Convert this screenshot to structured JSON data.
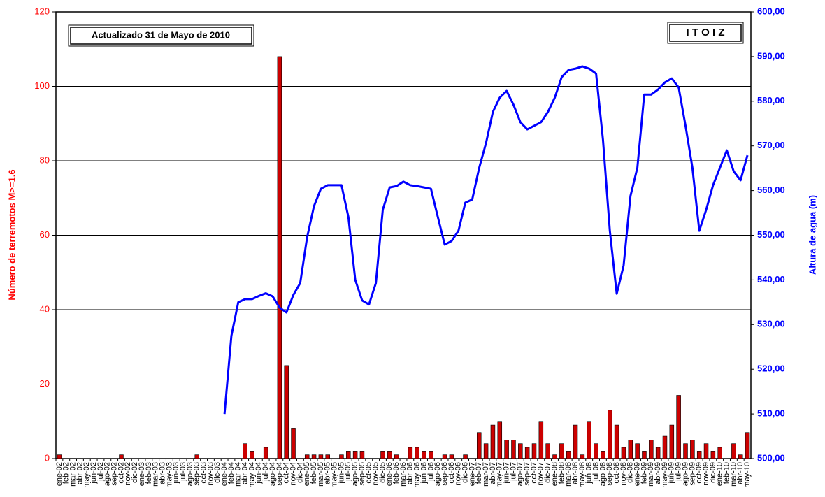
{
  "chart_data": {
    "type": "bar",
    "annotations": [
      "Actualizado 31 de Mayo de 2010",
      "I T O I Z"
    ],
    "ylabel": "Número de terremotos M>=1.6",
    "y2label": "Altura de agua (m)",
    "categories": [
      "ene-02",
      "feb-02",
      "mar-02",
      "abr-02",
      "may-02",
      "jun-02",
      "jul-02",
      "ago-02",
      "sep-02",
      "oct-02",
      "nov-02",
      "dic-02",
      "ene-03",
      "feb-03",
      "mar-03",
      "abr-03",
      "may-03",
      "jun-03",
      "jul-03",
      "ago-03",
      "sep-03",
      "oct-03",
      "nov-03",
      "dic-03",
      "ene-04",
      "feb-04",
      "mar-04",
      "abr-04",
      "may-04",
      "jun-04",
      "jul-04",
      "ago-04",
      "sep-04",
      "oct-04",
      "nov-04",
      "dic-04",
      "ene-05",
      "feb-05",
      "mar-05",
      "abr-05",
      "may-05",
      "jun-05",
      "jul-05",
      "ago-05",
      "sep-05",
      "oct-05",
      "nov-05",
      "dic-05",
      "ene-06",
      "feb-06",
      "mar-06",
      "abr-06",
      "may-06",
      "jun-06",
      "jul-06",
      "ago-06",
      "sep-06",
      "oct-06",
      "nov-06",
      "dic-06",
      "ene-07",
      "feb-07",
      "mar-07",
      "abr-07",
      "may-07",
      "jun-07",
      "jul-07",
      "ago-07",
      "sep-07",
      "oct-07",
      "nov-07",
      "dic-07",
      "ene-08",
      "feb-08",
      "mar-08",
      "abr-08",
      "may-08",
      "jun-08",
      "jul-08",
      "ago-08",
      "sep-08",
      "oct-08",
      "nov-08",
      "dic-08",
      "ene-09",
      "feb-09",
      "mar-09",
      "abr-09",
      "may-09",
      "jun-09",
      "jul-09",
      "ago-09",
      "sep-09",
      "oct-09",
      "nov-09",
      "dic-09",
      "ene-10",
      "feb-10",
      "mar-10",
      "abr-10",
      "may-10"
    ],
    "series": [
      {
        "type": "bar",
        "color": "#cc0000",
        "values": [
          1,
          0,
          0,
          0,
          0,
          0,
          0,
          0,
          0,
          1,
          0,
          0,
          0,
          0,
          0,
          0,
          0,
          0,
          0,
          0,
          1,
          0,
          0,
          0,
          0,
          0,
          0,
          4,
          2,
          0,
          3,
          0,
          108,
          25,
          8,
          0,
          1,
          1,
          1,
          1,
          0,
          1,
          2,
          2,
          2,
          0,
          0,
          2,
          2,
          1,
          0,
          3,
          3,
          2,
          2,
          0,
          1,
          1,
          0,
          1,
          0,
          7,
          4,
          9,
          10,
          5,
          5,
          4,
          3,
          4,
          10,
          4,
          1,
          4,
          2,
          9,
          1,
          10,
          4,
          2,
          13,
          9,
          3,
          5,
          4,
          2,
          5,
          3,
          6,
          9,
          17,
          4,
          5,
          2,
          4,
          2,
          3,
          0,
          4,
          1,
          7
        ]
      },
      {
        "type": "line",
        "axis": "y2",
        "color": "#0000ff",
        "values": [
          null,
          null,
          null,
          null,
          null,
          null,
          null,
          null,
          null,
          null,
          null,
          null,
          null,
          null,
          null,
          null,
          null,
          null,
          null,
          null,
          null,
          null,
          null,
          null,
          510,
          527.5,
          535,
          535.7,
          535.7,
          536.4,
          537,
          536.3,
          533.8,
          532.7,
          536.6,
          539.3,
          549.5,
          556.5,
          560.4,
          561.2,
          561.2,
          561.2,
          554.1,
          540,
          535.4,
          534.5,
          539.3,
          555.7,
          560.7,
          561,
          562,
          561.2,
          561,
          560.7,
          560.4,
          554.1,
          547.9,
          548.7,
          551,
          557.3,
          558,
          565,
          570.6,
          577.6,
          580.8,
          582.3,
          579.2,
          575.3,
          573.7,
          574.5,
          575.3,
          577.6,
          580.8,
          585.4,
          587,
          587.3,
          587.8,
          587.3,
          586.2,
          571.4,
          551,
          536.9,
          543.2,
          558.8,
          565.1,
          581.5,
          581.5,
          582.6,
          584.2,
          585.1,
          583.1,
          574.5,
          565.1,
          551,
          555.7,
          561.2,
          565.1,
          569,
          564.3,
          562.3,
          567.9
        ]
      }
    ],
    "ylim": [
      0,
      120
    ],
    "yticks": [
      0,
      20,
      40,
      60,
      80,
      100,
      120
    ],
    "ycolor": "#ff0000",
    "y2lim": [
      500,
      600
    ],
    "y2ticks": [
      {
        "value": 500,
        "label": "500,00"
      },
      {
        "value": 510,
        "label": "510,00"
      },
      {
        "value": 520,
        "label": "520,00"
      },
      {
        "value": 530,
        "label": "530,00"
      },
      {
        "value": 540,
        "label": "540,00"
      },
      {
        "value": 550,
        "label": "550,00"
      },
      {
        "value": 560,
        "label": "560,00"
      },
      {
        "value": 570,
        "label": "570,00"
      },
      {
        "value": 580,
        "label": "580,00"
      },
      {
        "value": 590,
        "label": "590,00"
      },
      {
        "value": 600,
        "label": "600,00"
      }
    ],
    "y2color": "#0000ff",
    "grid": true
  }
}
